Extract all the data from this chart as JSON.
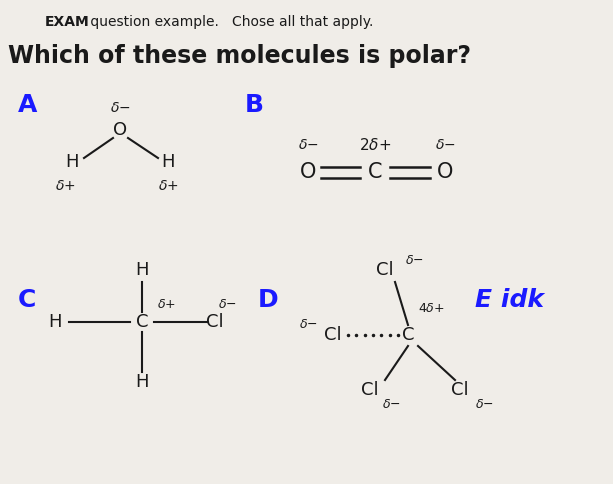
{
  "title_line1_bold": "EXAM",
  "title_line1_rest": " question example.   Chose all that apply.",
  "title_line2": "Which of these molecules is polar?",
  "bg_color": "#f0ede8",
  "text_color_black": "#1a1a1a",
  "text_color_blue": "#1a1aff",
  "figsize": [
    6.13,
    4.84
  ],
  "dpi": 100
}
